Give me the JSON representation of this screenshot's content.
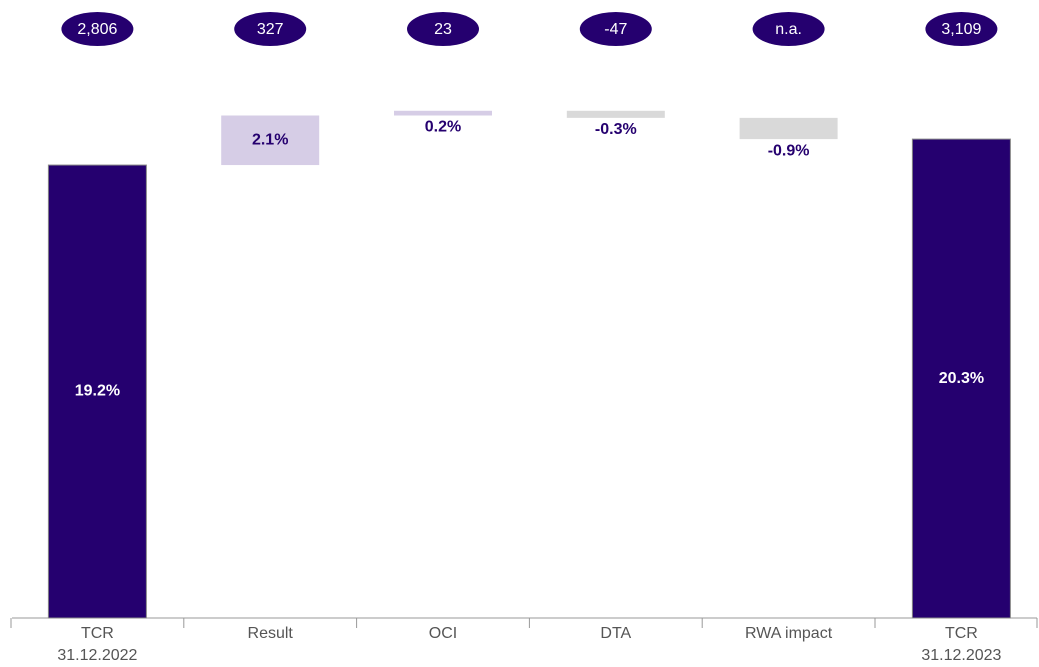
{
  "chart_data": {
    "type": "waterfall",
    "categories": [
      "TCR\n31.12.2022",
      "Result",
      "OCI",
      "DTA",
      "RWA impact",
      "TCR\n31.12.2023"
    ],
    "values": [
      19.2,
      2.1,
      0.2,
      -0.3,
      -0.9,
      20.3
    ],
    "value_labels": [
      "19.2%",
      "2.1%",
      "0.2%",
      "-0.3%",
      "-0.9%",
      "20.3%"
    ],
    "measure": [
      "absolute",
      "relative",
      "relative",
      "relative",
      "relative",
      "absolute"
    ],
    "annotations": [
      "2,806",
      "327",
      "23",
      "-47",
      "n.a.",
      "3,109"
    ],
    "colors": {
      "total": "#25006f",
      "increase": "#d6cde6",
      "decrease": "#d9d9d9"
    },
    "ylim": [
      0,
      22
    ]
  }
}
